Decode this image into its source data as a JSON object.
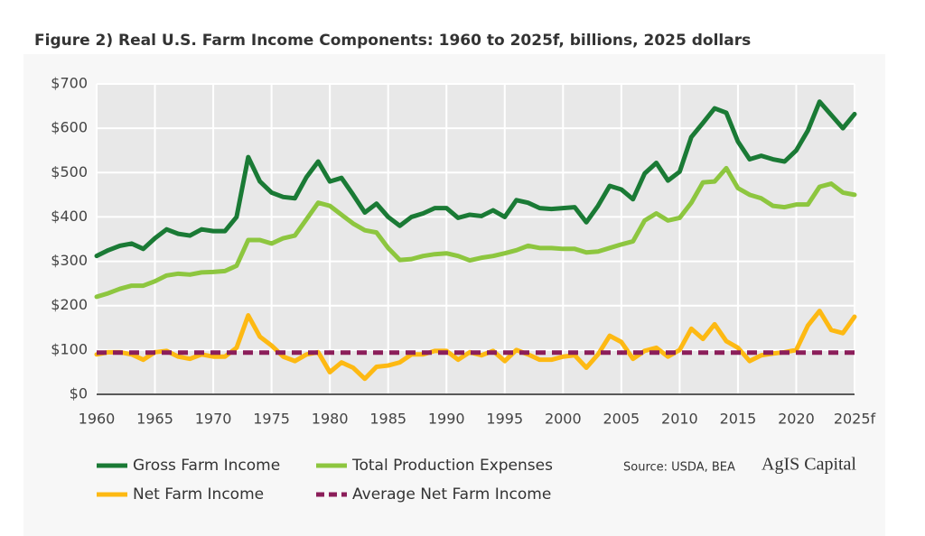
{
  "chart_data": {
    "type": "line",
    "title": "Figure 2) Real U.S. Farm Income Components: 1960 to 2025f, billions, 2025 dollars",
    "x": [
      1960,
      1961,
      1962,
      1963,
      1964,
      1965,
      1966,
      1967,
      1968,
      1969,
      1970,
      1971,
      1972,
      1973,
      1974,
      1975,
      1976,
      1977,
      1978,
      1979,
      1980,
      1981,
      1982,
      1983,
      1984,
      1985,
      1986,
      1987,
      1988,
      1989,
      1990,
      1991,
      1992,
      1993,
      1994,
      1995,
      1996,
      1997,
      1998,
      1999,
      2000,
      2001,
      2002,
      2003,
      2004,
      2005,
      2006,
      2007,
      2008,
      2009,
      2010,
      2011,
      2012,
      2013,
      2014,
      2015,
      2016,
      2017,
      2018,
      2019,
      2020,
      2021,
      2022,
      2023,
      2024,
      2025
    ],
    "series": [
      {
        "name": "Gross Farm Income",
        "color": "#1a7a35",
        "values": [
          312,
          325,
          335,
          340,
          328,
          352,
          372,
          362,
          358,
          372,
          368,
          368,
          400,
          535,
          480,
          455,
          445,
          442,
          490,
          525,
          480,
          488,
          450,
          410,
          430,
          400,
          380,
          400,
          408,
          420,
          420,
          398,
          405,
          402,
          415,
          400,
          438,
          432,
          420,
          418,
          420,
          422,
          388,
          425,
          470,
          462,
          440,
          498,
          522,
          482,
          502,
          580,
          612,
          645,
          635,
          570,
          530,
          538,
          530,
          525,
          550,
          595,
          660,
          630,
          600,
          632
        ]
      },
      {
        "name": "Total Production Expenses",
        "color": "#8dc63f",
        "values": [
          220,
          228,
          238,
          245,
          245,
          255,
          268,
          272,
          270,
          275,
          276,
          278,
          290,
          348,
          348,
          340,
          352,
          358,
          395,
          432,
          425,
          405,
          385,
          370,
          365,
          330,
          303,
          305,
          312,
          316,
          318,
          312,
          302,
          308,
          312,
          318,
          325,
          335,
          330,
          330,
          328,
          328,
          320,
          322,
          330,
          338,
          345,
          392,
          408,
          392,
          398,
          432,
          478,
          480,
          510,
          465,
          450,
          442,
          425,
          422,
          428,
          428,
          468,
          475,
          455,
          450
        ]
      },
      {
        "name": "Net Farm Income",
        "color": "#fdb913",
        "values": [
          90,
          95,
          95,
          90,
          78,
          95,
          98,
          85,
          80,
          90,
          85,
          85,
          105,
          178,
          130,
          110,
          85,
          75,
          90,
          95,
          50,
          72,
          60,
          35,
          62,
          65,
          72,
          90,
          90,
          98,
          98,
          78,
          95,
          88,
          98,
          75,
          100,
          90,
          78,
          78,
          85,
          88,
          60,
          90,
          132,
          118,
          80,
          98,
          105,
          85,
          100,
          148,
          125,
          158,
          120,
          105,
          75,
          88,
          92,
          95,
          100,
          155,
          188,
          145,
          138,
          175
        ]
      },
      {
        "name": "Average Net Farm Income",
        "color": "#8b1e5a",
        "dashed": true,
        "values": [
          94,
          94,
          94,
          94,
          94,
          94,
          94,
          94,
          94,
          94,
          94,
          94,
          94,
          94,
          94,
          94,
          94,
          94,
          94,
          94,
          94,
          94,
          94,
          94,
          94,
          94,
          94,
          94,
          94,
          94,
          94,
          94,
          94,
          94,
          94,
          94,
          94,
          94,
          94,
          94,
          94,
          94,
          94,
          94,
          94,
          94,
          94,
          94,
          94,
          94,
          94,
          94,
          94,
          94,
          94,
          94,
          94,
          94,
          94,
          94,
          94,
          94,
          94,
          94,
          94,
          94
        ]
      }
    ],
    "xlim": [
      1960,
      2025
    ],
    "xticks": [
      1960,
      1965,
      1970,
      1975,
      1980,
      1985,
      1990,
      1995,
      2000,
      2005,
      2010,
      2015,
      2020,
      {
        "value": 2025,
        "label": "2025f"
      }
    ],
    "ylim": [
      0,
      700
    ],
    "yticks": [
      {
        "value": 0,
        "label": "$0"
      },
      {
        "value": 100,
        "label": "$100"
      },
      {
        "value": 200,
        "label": "$200"
      },
      {
        "value": 300,
        "label": "$300"
      },
      {
        "value": 400,
        "label": "$400"
      },
      {
        "value": 500,
        "label": "$500"
      },
      {
        "value": 600,
        "label": "$600"
      },
      {
        "value": 700,
        "label": "$700"
      }
    ],
    "grid": true,
    "source": "Source: USDA, BEA",
    "logo": "AgIS Capital"
  }
}
